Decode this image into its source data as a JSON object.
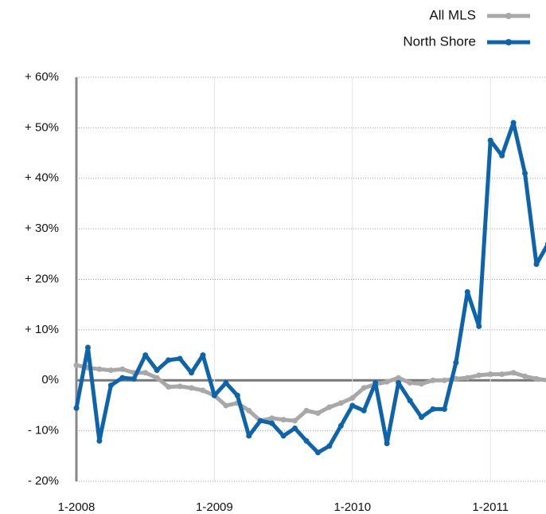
{
  "chart_data": {
    "type": "line",
    "categories": [
      "1-2008",
      null,
      null,
      null,
      null,
      null,
      null,
      null,
      null,
      null,
      null,
      null,
      "1-2009",
      null,
      null,
      null,
      null,
      null,
      null,
      null,
      null,
      null,
      null,
      null,
      "1-2010",
      null,
      null,
      null,
      null,
      null,
      null,
      null,
      null,
      null,
      null,
      null,
      "1-2011",
      null,
      null,
      null,
      null,
      null
    ],
    "series": [
      {
        "name": "All MLS",
        "color": "#a8a8a8",
        "values": [
          3,
          2.5,
          2.2,
          2,
          2.2,
          1.5,
          1.5,
          0.5,
          -1.3,
          -1.2,
          -1.5,
          -2,
          -3,
          -5,
          -4.5,
          -6,
          -8,
          -7.5,
          -7.8,
          -8,
          -6,
          -6.5,
          -5.3,
          -4.5,
          -3.5,
          -1.5,
          -0.8,
          -0.3,
          0.5,
          -0.5,
          -0.7,
          0,
          0,
          0.3,
          0.5,
          1,
          1.2,
          1.2,
          1.5,
          0.8,
          0.3,
          0
        ]
      },
      {
        "name": "North Shore",
        "color": "#0e64ab",
        "values": [
          -5.5,
          6.5,
          -12,
          -1,
          0.5,
          0.3,
          5,
          2,
          4,
          4.3,
          1.5,
          5,
          -3,
          -0.5,
          -3,
          -11,
          -8,
          -8.5,
          -11,
          -9.5,
          -12,
          -14.3,
          -13,
          -9,
          -5,
          -6,
          -0.5,
          -12.5,
          -0.5,
          -4,
          -7.3,
          -5.7,
          -5.7,
          3.5,
          17.5,
          10.7,
          47.5,
          44.5,
          51,
          41,
          23,
          27
        ]
      }
    ],
    "ylim": [
      -20,
      60
    ],
    "yticks": [
      {
        "value": -20,
        "label": "- 20%"
      },
      {
        "value": -10,
        "label": "- 10%"
      },
      {
        "value": 0,
        "label": "0%"
      },
      {
        "value": 10,
        "label": "+ 10%"
      },
      {
        "value": 20,
        "label": "+ 20%"
      },
      {
        "value": 30,
        "label": "+ 30%"
      },
      {
        "value": 40,
        "label": "+ 40%"
      },
      {
        "value": 50,
        "label": "+ 50%"
      },
      {
        "value": 60,
        "label": "+ 60%"
      }
    ],
    "grid": true,
    "legend": "top-right"
  }
}
